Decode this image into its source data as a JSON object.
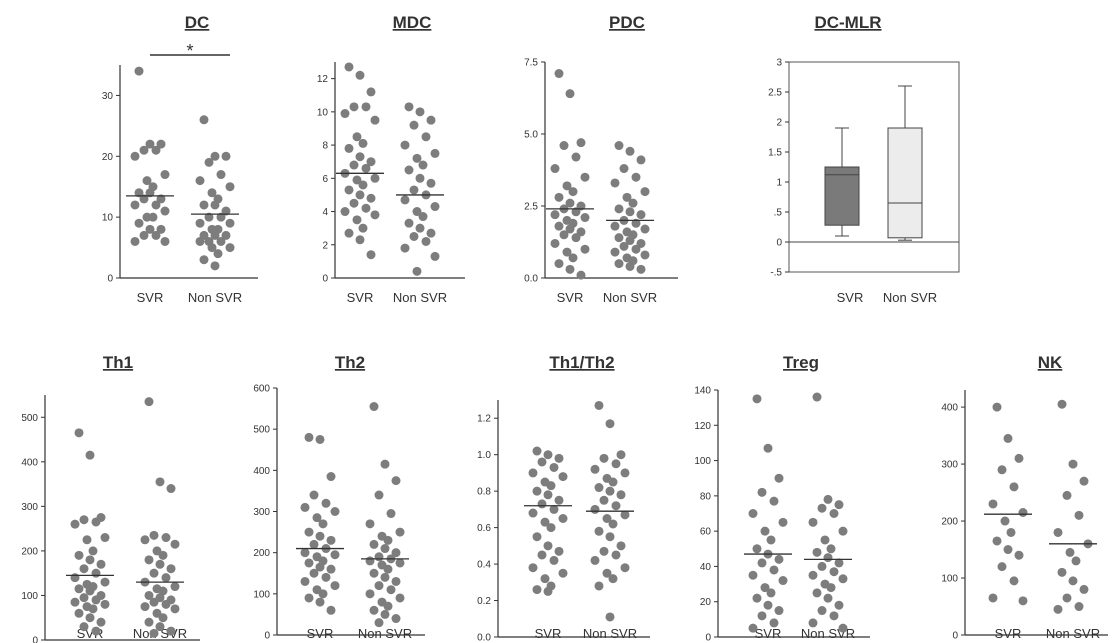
{
  "chart_data": [
    {
      "type": "scatter",
      "title": "DC",
      "categories": [
        "SVR",
        "Non SVR"
      ],
      "ylim": [
        0,
        35
      ],
      "yticks": [
        0,
        10,
        20,
        30
      ],
      "ytick_labels": [
        "0",
        "10",
        "20",
        "30"
      ],
      "series": [
        {
          "values": [
            34,
            22,
            22,
            21,
            21,
            20,
            17,
            16,
            15,
            14,
            14,
            13,
            13,
            12,
            12,
            11,
            10,
            10,
            9,
            8,
            8,
            7,
            7,
            6,
            6
          ],
          "mean": 13.5
        },
        {
          "values": [
            26,
            20,
            20,
            19,
            17,
            16,
            15,
            14,
            13,
            12,
            12,
            11,
            10,
            10,
            9,
            9,
            8,
            8,
            7,
            7,
            7,
            6,
            6,
            6,
            5,
            5,
            4,
            3,
            2
          ],
          "mean": 10.5
        }
      ],
      "annotation": "*"
    },
    {
      "type": "scatter",
      "title": "MDC",
      "categories": [
        "SVR",
        "Non SVR"
      ],
      "ylim": [
        0,
        13
      ],
      "yticks": [
        0,
        2,
        4,
        6,
        8,
        10,
        12
      ],
      "ytick_labels": [
        "0",
        "2",
        "4",
        "6",
        "8",
        "10",
        "12"
      ],
      "series": [
        {
          "values": [
            12.7,
            12.2,
            11.2,
            10.3,
            10.3,
            9.9,
            9.5,
            8.5,
            8.1,
            7.8,
            7.3,
            7.0,
            6.8,
            6.6,
            6.3,
            6.0,
            5.9,
            5.6,
            5.3,
            5.0,
            4.8,
            4.5,
            4.2,
            4.0,
            3.8,
            3.5,
            3.0,
            2.7,
            2.3,
            1.4
          ],
          "mean": 6.3
        },
        {
          "values": [
            10.3,
            10.0,
            9.5,
            9.2,
            8.5,
            8.0,
            7.5,
            7.2,
            6.8,
            6.5,
            6.0,
            5.7,
            5.3,
            5.0,
            4.7,
            4.3,
            4.0,
            3.7,
            3.3,
            3.0,
            2.7,
            2.5,
            2.2,
            1.8,
            1.3,
            0.4
          ],
          "mean": 5.0
        }
      ]
    },
    {
      "type": "scatter",
      "title": "PDC",
      "categories": [
        "SVR",
        "Non SVR"
      ],
      "ylim": [
        0,
        7.5
      ],
      "yticks": [
        0,
        2.5,
        5,
        7.5
      ],
      "ytick_labels": [
        "0.0",
        "2.5",
        "5.0",
        "7.5"
      ],
      "series": [
        {
          "values": [
            7.1,
            6.4,
            4.7,
            4.6,
            4.2,
            3.8,
            3.5,
            3.2,
            3.0,
            2.8,
            2.6,
            2.5,
            2.4,
            2.3,
            2.2,
            2.1,
            2.0,
            1.9,
            1.8,
            1.7,
            1.6,
            1.5,
            1.4,
            1.2,
            1.0,
            0.9,
            0.7,
            0.5,
            0.3,
            0.1
          ],
          "mean": 2.4
        },
        {
          "values": [
            4.6,
            4.4,
            4.1,
            3.8,
            3.5,
            3.3,
            3.0,
            2.8,
            2.6,
            2.4,
            2.3,
            2.2,
            2.0,
            1.9,
            1.8,
            1.7,
            1.6,
            1.5,
            1.4,
            1.3,
            1.2,
            1.1,
            1.0,
            0.9,
            0.8,
            0.7,
            0.6,
            0.5,
            0.4,
            0.3
          ],
          "mean": 2.0
        }
      ]
    },
    {
      "type": "box",
      "title": "DC-MLR",
      "categories": [
        "SVR",
        "Non SVR"
      ],
      "ylim": [
        -0.5,
        3
      ],
      "yticks": [
        -0.5,
        0,
        0.5,
        1,
        1.5,
        2,
        2.5,
        3
      ],
      "ytick_labels": [
        "-.5",
        "0",
        ".5",
        "1",
        "1.5",
        "2",
        "2.5",
        "3"
      ],
      "boxes": [
        {
          "min": 0.1,
          "q1": 0.28,
          "median": 1.12,
          "q3": 1.25,
          "max": 1.9,
          "fill": "#7a7a7a"
        },
        {
          "min": 0.03,
          "q1": 0.07,
          "median": 0.65,
          "q3": 1.9,
          "max": 2.6,
          "fill": "#ececec"
        }
      ]
    },
    {
      "type": "scatter",
      "title": "Th1",
      "categories": [
        "SVR",
        "Non SVR"
      ],
      "ylim": [
        0,
        550
      ],
      "yticks": [
        0,
        100,
        200,
        300,
        400,
        500
      ],
      "ytick_labels": [
        "0",
        "100",
        "200",
        "300",
        "400",
        "500"
      ],
      "series": [
        {
          "values": [
            465,
            415,
            275,
            270,
            265,
            260,
            230,
            225,
            200,
            190,
            180,
            170,
            160,
            150,
            140,
            130,
            125,
            120,
            115,
            110,
            100,
            95,
            90,
            85,
            80,
            75,
            70,
            60,
            50,
            40,
            30,
            20
          ],
          "mean": 145
        },
        {
          "values": [
            535,
            355,
            340,
            235,
            230,
            225,
            215,
            200,
            190,
            180,
            170,
            160,
            150,
            140,
            130,
            120,
            115,
            110,
            100,
            95,
            90,
            85,
            80,
            75,
            70,
            60,
            50,
            40,
            30,
            20,
            15
          ],
          "mean": 130
        }
      ]
    },
    {
      "type": "scatter",
      "title": "Th2",
      "categories": [
        "SVR",
        "Non SVR"
      ],
      "ylim": [
        0,
        600
      ],
      "yticks": [
        0,
        100,
        200,
        300,
        400,
        500,
        600
      ],
      "ytick_labels": [
        "0",
        "100",
        "200",
        "300",
        "400",
        "500",
        "600"
      ],
      "series": [
        {
          "values": [
            480,
            475,
            385,
            340,
            320,
            310,
            300,
            285,
            270,
            250,
            240,
            230,
            220,
            210,
            200,
            195,
            190,
            180,
            175,
            165,
            160,
            150,
            140,
            130,
            120,
            110,
            100,
            90,
            80,
            60
          ],
          "mean": 210
        },
        {
          "values": [
            555,
            415,
            375,
            340,
            295,
            270,
            250,
            240,
            230,
            220,
            210,
            200,
            190,
            185,
            180,
            175,
            170,
            160,
            150,
            140,
            130,
            120,
            110,
            100,
            90,
            80,
            70,
            60,
            50,
            40,
            30
          ],
          "mean": 185
        }
      ]
    },
    {
      "type": "scatter",
      "title": "Th1/Th2",
      "categories": [
        "SVR",
        "Non SVR"
      ],
      "ylim": [
        0,
        1.3
      ],
      "yticks": [
        0,
        0.2,
        0.4,
        0.6,
        0.8,
        1.0,
        1.2
      ],
      "ytick_labels": [
        "0.0",
        "0.2",
        "0.4",
        "0.6",
        "0.8",
        "1.0",
        "1.2"
      ],
      "series": [
        {
          "values": [
            1.02,
            1.0,
            0.98,
            0.96,
            0.93,
            0.9,
            0.88,
            0.85,
            0.83,
            0.8,
            0.78,
            0.75,
            0.73,
            0.7,
            0.68,
            0.65,
            0.63,
            0.6,
            0.55,
            0.5,
            0.47,
            0.45,
            0.42,
            0.38,
            0.35,
            0.32,
            0.28,
            0.26,
            0.25
          ],
          "mean": 0.72
        },
        {
          "values": [
            1.27,
            1.17,
            1.0,
            0.98,
            0.95,
            0.92,
            0.9,
            0.87,
            0.85,
            0.82,
            0.8,
            0.78,
            0.75,
            0.72,
            0.7,
            0.67,
            0.65,
            0.62,
            0.58,
            0.55,
            0.5,
            0.47,
            0.45,
            0.42,
            0.38,
            0.35,
            0.32,
            0.28,
            0.11
          ],
          "mean": 0.69
        }
      ]
    },
    {
      "type": "scatter",
      "title": "Treg",
      "categories": [
        "SVR",
        "Non SVR"
      ],
      "ylim": [
        0,
        140
      ],
      "yticks": [
        0,
        20,
        40,
        60,
        80,
        100,
        120,
        140
      ],
      "ytick_labels": [
        "0",
        "20",
        "40",
        "60",
        "80",
        "100",
        "120",
        "140"
      ],
      "series": [
        {
          "values": [
            135,
            107,
            90,
            82,
            77,
            70,
            65,
            60,
            55,
            50,
            47,
            44,
            42,
            38,
            35,
            32,
            28,
            25,
            22,
            18,
            15,
            12,
            8,
            5
          ],
          "mean": 47
        },
        {
          "values": [
            136,
            78,
            75,
            73,
            70,
            65,
            60,
            55,
            50,
            48,
            45,
            42,
            40,
            37,
            35,
            33,
            30,
            28,
            25,
            22,
            18,
            15,
            12,
            8,
            5
          ],
          "mean": 44
        }
      ]
    },
    {
      "type": "scatter",
      "title": "NK",
      "categories": [
        "SVR",
        "Non SVR"
      ],
      "ylim": [
        0,
        430
      ],
      "yticks": [
        0,
        100,
        200,
        300,
        400
      ],
      "ytick_labels": [
        "0",
        "100",
        "200",
        "300",
        "400"
      ],
      "series": [
        {
          "values": [
            400,
            345,
            310,
            290,
            260,
            230,
            215,
            200,
            180,
            165,
            150,
            140,
            120,
            95,
            65,
            60
          ],
          "mean": 212
        },
        {
          "values": [
            405,
            300,
            270,
            245,
            210,
            180,
            160,
            145,
            130,
            110,
            95,
            80,
            65,
            50,
            45
          ],
          "mean": 160
        }
      ]
    }
  ]
}
